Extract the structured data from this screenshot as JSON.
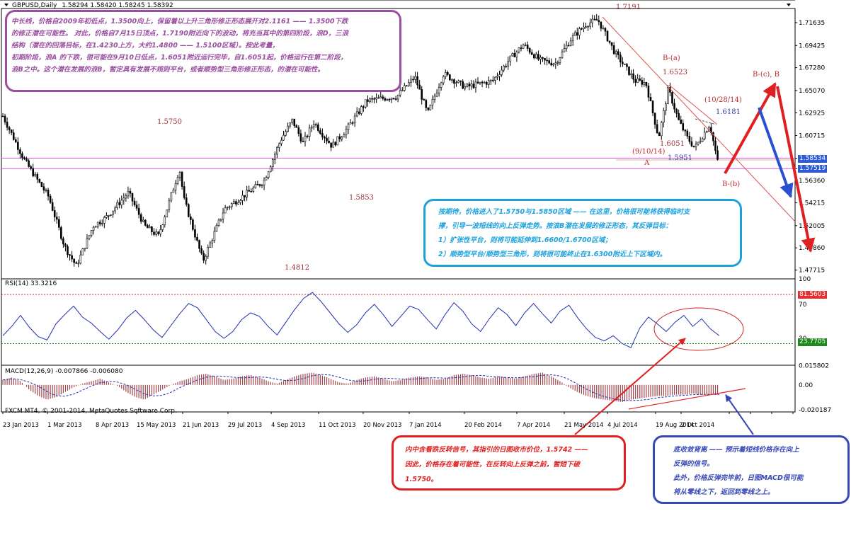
{
  "header": {
    "symbol_label": "GBPUSD,Daily",
    "ohlc": "1.58294 1.58420 1.58245 1.58392"
  },
  "chart_data": [
    {
      "type": "candlestick",
      "title": "GBPUSD,Daily",
      "ohlc_last": {
        "open": 1.58294,
        "high": 1.5842,
        "low": 1.58245,
        "close": 1.58392
      },
      "ylim": [
        1.47,
        1.73
      ],
      "x_ticks": [
        "23 Jan 2013",
        "1 Mar 2013",
        "8 Apr 2013",
        "15 May 2013",
        "21 Jun 2013",
        "29 Jul 2013",
        "4 Sep 2013",
        "11 Oct 2013",
        "20 Nov 2013",
        "7 Jan 2014",
        "20 Feb 2014",
        "7 Apr 2014",
        "21 May 2014",
        "4 Jul 2014",
        "19 Aug 2014",
        "2 Oct 2014"
      ],
      "y_ticks": [
        1.71635,
        1.69425,
        1.6728,
        1.6507,
        1.62925,
        1.60715,
        1.58534,
        1.57519,
        1.5636,
        1.54215,
        1.52005,
        1.4986,
        1.47715
      ],
      "price_path": [
        {
          "date": "2013-01-02",
          "close": 1.626
        },
        {
          "date": "2013-01-23",
          "close": 1.582
        },
        {
          "date": "2013-02-14",
          "close": 1.548
        },
        {
          "date": "2013-03-01",
          "close": 1.5
        },
        {
          "date": "2013-03-12",
          "close": 1.481
        },
        {
          "date": "2013-03-28",
          "close": 1.52
        },
        {
          "date": "2013-04-08",
          "close": 1.527
        },
        {
          "date": "2013-04-30",
          "close": 1.552
        },
        {
          "date": "2013-05-15",
          "close": 1.52
        },
        {
          "date": "2013-05-28",
          "close": 1.51
        },
        {
          "date": "2013-06-17",
          "close": 1.575
        },
        {
          "date": "2013-06-21",
          "close": 1.546
        },
        {
          "date": "2013-07-09",
          "close": 1.486
        },
        {
          "date": "2013-07-29",
          "close": 1.536
        },
        {
          "date": "2013-08-12",
          "close": 1.546
        },
        {
          "date": "2013-09-04",
          "close": 1.563
        },
        {
          "date": "2013-09-20",
          "close": 1.603
        },
        {
          "date": "2013-10-01",
          "close": 1.622
        },
        {
          "date": "2013-10-11",
          "close": 1.6
        },
        {
          "date": "2013-10-21",
          "close": 1.62
        },
        {
          "date": "2013-11-07",
          "close": 1.597
        },
        {
          "date": "2013-11-20",
          "close": 1.612
        },
        {
          "date": "2013-12-10",
          "close": 1.641
        },
        {
          "date": "2014-01-07",
          "close": 1.645
        },
        {
          "date": "2014-01-24",
          "close": 1.664
        },
        {
          "date": "2014-02-05",
          "close": 1.628
        },
        {
          "date": "2014-02-20",
          "close": 1.667
        },
        {
          "date": "2014-03-12",
          "close": 1.654
        },
        {
          "date": "2014-04-07",
          "close": 1.66
        },
        {
          "date": "2014-04-24",
          "close": 1.682
        },
        {
          "date": "2014-05-06",
          "close": 1.695
        },
        {
          "date": "2014-05-21",
          "close": 1.68
        },
        {
          "date": "2014-06-05",
          "close": 1.677
        },
        {
          "date": "2014-06-20",
          "close": 1.701
        },
        {
          "date": "2014-07-04",
          "close": 1.715
        },
        {
          "date": "2014-07-15",
          "close": 1.719
        },
        {
          "date": "2014-07-31",
          "close": 1.687
        },
        {
          "date": "2014-08-19",
          "close": 1.66
        },
        {
          "date": "2014-08-29",
          "close": 1.658
        },
        {
          "date": "2014-09-10",
          "close": 1.605
        },
        {
          "date": "2014-09-19",
          "close": 1.6523
        },
        {
          "date": "2014-09-29",
          "close": 1.621
        },
        {
          "date": "2014-10-07",
          "close": 1.605
        },
        {
          "date": "2014-10-14",
          "close": 1.5951
        },
        {
          "date": "2014-10-28",
          "close": 1.6181
        },
        {
          "date": "2014-11-06",
          "close": 1.5742
        }
      ],
      "horizontal_lines": [
        1.58534,
        1.57519
      ],
      "price_tags": [
        "1.58534",
        "1.57519"
      ],
      "annotations": {
        "levels_on_chart": [
          "1.7191",
          "1.6523",
          "1.6181",
          "1.6051",
          "1.5951",
          "1.5750",
          "1.5853",
          "1.4812"
        ],
        "wave_labels": [
          "B-(a)",
          "B-(b)",
          "B-(c), B",
          "A",
          "(9/10/14)",
          "(10/28/14)"
        ]
      }
    },
    {
      "type": "line",
      "title": "RSI(14) 33.3216",
      "ylim": [
        0,
        100
      ],
      "y_ticks": [
        100,
        70,
        30,
        0
      ],
      "levels": [
        81.5603,
        23.7705
      ],
      "level_tags": [
        "81.5603",
        "23.7705"
      ],
      "values": [
        33,
        44,
        57,
        43,
        32,
        28,
        47,
        58,
        68,
        55,
        48,
        38,
        29,
        40,
        54,
        63,
        52,
        40,
        31,
        45,
        59,
        71,
        66,
        52,
        38,
        30,
        38,
        52,
        60,
        56,
        44,
        34,
        49,
        64,
        77,
        84,
        73,
        60,
        47,
        37,
        46,
        60,
        70,
        58,
        44,
        56,
        68,
        64,
        52,
        41,
        58,
        72,
        62,
        47,
        38,
        53,
        66,
        58,
        45,
        60,
        71,
        59,
        48,
        62,
        69,
        54,
        41,
        31,
        27,
        33,
        24,
        19,
        42,
        55,
        47,
        38,
        49,
        57,
        44,
        53,
        41,
        33
      ]
    },
    {
      "type": "bar+line",
      "title": "MACD(12,26,9) -0.007866 -0.006080",
      "ylim": [
        -0.022,
        0.016
      ],
      "y_ticks": [
        0.015802,
        0.0,
        -0.020187
      ],
      "histogram": [
        0.004,
        0.006,
        0.003,
        -0.004,
        -0.009,
        -0.012,
        -0.01,
        -0.006,
        -0.002,
        0.001,
        0.003,
        0.005,
        0.002,
        -0.001,
        -0.006,
        -0.01,
        -0.012,
        -0.008,
        -0.004,
        0.0,
        0.003,
        0.005,
        0.008,
        0.009,
        0.007,
        0.004,
        0.005,
        0.007,
        0.008,
        0.006,
        0.003,
        0.001,
        0.004,
        0.007,
        0.009,
        0.01,
        0.008,
        0.005,
        0.002,
        0.001,
        0.004,
        0.006,
        0.007,
        0.005,
        0.003,
        0.004,
        0.006,
        0.007,
        0.006,
        0.004,
        0.005,
        0.008,
        0.009,
        0.008,
        0.006,
        0.005,
        0.007,
        0.006,
        0.005,
        0.007,
        0.009,
        0.01,
        0.007,
        0.003,
        -0.002,
        -0.006,
        -0.009,
        -0.011,
        -0.012,
        -0.013,
        -0.014,
        -0.012,
        -0.011,
        -0.01,
        -0.009,
        -0.009,
        -0.008,
        -0.008,
        -0.007,
        -0.008,
        -0.008,
        -0.008
      ]
    }
  ],
  "axis": {
    "y_labels": [
      "1.71635",
      "1.69425",
      "1.67280",
      "1.65070",
      "1.62925",
      "1.60715",
      "1.56360",
      "1.54215",
      "1.52005",
      "1.49860",
      "1.47715"
    ],
    "x_labels": [
      "23 Jan 2013",
      "1 Mar 2013",
      "8 Apr 2013",
      "15 May 2013",
      "21 Jun 2013",
      "29 Jul 2013",
      "4 Sep 2013",
      "11 Oct 2013",
      "20 Nov 2013",
      "7 Jan 2014",
      "20 Feb 2014",
      "7 Apr 2014",
      "21 May 2014",
      "4 Jul 2014",
      "19 Aug 2014",
      "2 Oct 2014"
    ],
    "rsi_labels": [
      "100",
      "70",
      "30",
      "0"
    ],
    "macd_labels": [
      "0.015802",
      "0.00",
      "-0.020187"
    ]
  },
  "indicators": {
    "rsi_title": "RSI(14) 33.3216",
    "macd_title": "MACD(12,26,9) -0.007866 -0.006080"
  },
  "tags": {
    "price_upper": "1.58534",
    "price_lower": "1.57519",
    "rsi_upper": "81.5603",
    "rsi_lower": "23.7705"
  },
  "labels": {
    "p1_7191": "1.7191",
    "p1_6523": "1.6523",
    "p1_6181": "1.6181",
    "p1_6051": "1.6051",
    "p1_5951": "1.5951",
    "p1_5750": "1.5750",
    "p1_5853": "1.5853",
    "p1_4812": "1.4812",
    "wave_ba": "B-(a)",
    "wave_bb": "B-(b)",
    "wave_bc": "B-(c), B",
    "wave_a": "A",
    "date_0910": "(9/10/14)",
    "date_1028": "(10/28/14)"
  },
  "footer_copyright": "FXCM MT4, © 2001-2014, MetaQuotes Software Corp.",
  "notes": {
    "purple": [
      "中长线，价格自2009年初低点，1.3500向上，保留着以上升三角形修正形态展开对2.1161 —— 1.3500下跌",
      "的修正潜在可能性。 对此，价格自7月15日顶点，1.7190附近向下的波动，将充当其中的第四阶段，浪D，三浪",
      "结构（潜在的回落目标，在1.4230上方，大约1.4800 —— 1.5100区域）。按此考量，",
      "初期阶段，浪A 的下跌，很可能在9月10日低点，1.6051附近运行完毕，自1.6051起，价格运行在第二阶段，",
      "浪B之中。这个潜在发展的浪B，暂定具有发展不规则平台，或者顺势型三角形修正形态，的潜在可能性。"
    ],
    "blue": [
      "按期待，价格进入了1.5750与1.5850区域 —— 在这里，价格很可能将获得临时支",
      "撑，引导一波短线的向上反弹走势。按浪B潜在发展的修正形态，其反弹目标：",
      "1）扩张性平台，则将可能延伸到1.6600/1.6700区域；",
      "2）顺势型平台/顺势型三角形，则将很可能终止在1.6300附近上下区域内。"
    ],
    "red": [
      "内中含看跌反转信号，其指引的日图收市价位，1.5742 ——",
      "因此，价格存在着可能性，在反转向上反弹之前，暂短下破",
      "1.5750。"
    ],
    "navy": [
      "底收敛背离 —— 预示着短线价格存在向上",
      "反弹的信号。",
      "此外，价格反弹完毕前，日图MACD很可能",
      "将从零线之下，返回到零线之上。"
    ]
  },
  "colors": {
    "background": "#ffffff",
    "candles": "#000000",
    "rsi_line": "#1f2fb0",
    "macd_hist": "#a2434b",
    "support_lines": "#d35ad3",
    "annotation_red": "#e02020",
    "annotation_blue": "#2a4fd0",
    "note_purple": "#9a4fa0",
    "note_blue": "#1ba2dd",
    "note_red": "#e02020",
    "note_navy": "#3747b7",
    "tag_blue": "#2e5ad6",
    "tag_red": "#e03030",
    "tag_green": "#1d8a1d"
  }
}
